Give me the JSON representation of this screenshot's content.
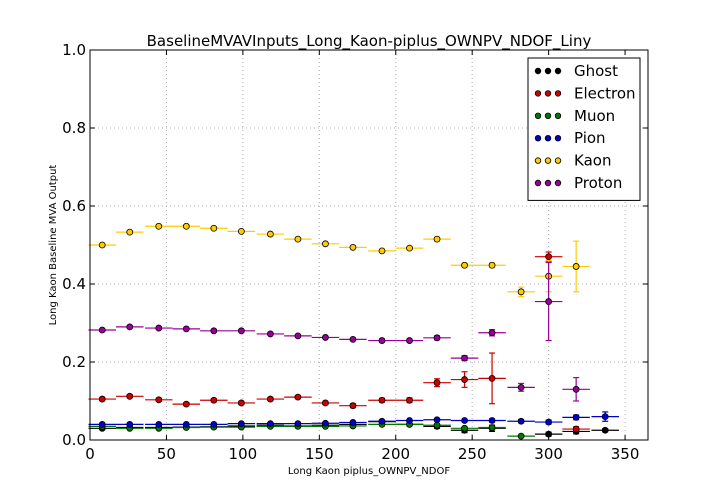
{
  "chart_data": {
    "type": "scatter",
    "title": "BaselineMVAVInputs_Long_Kaon-piplus_OWNPV_NDOF_Liny",
    "xlabel": "Long Kaon piplus_OWNPV_NDOF",
    "ylabel": "Long Kaon Baseline MVA Output",
    "xlim": [
      0,
      365
    ],
    "ylim": [
      0,
      1.0
    ],
    "x_ticks": [
      "0",
      "50",
      "100",
      "150",
      "200",
      "250",
      "300",
      "350"
    ],
    "y_ticks": [
      "0.0",
      "0.2",
      "0.4",
      "0.6",
      "0.8",
      "1.0"
    ],
    "grid": true,
    "legend_position": "top-right",
    "bin_half_width": 9,
    "x": [
      8,
      26,
      45,
      63,
      81,
      99,
      118,
      136,
      154,
      172,
      191,
      209,
      227,
      245,
      263,
      282,
      300,
      318,
      337
    ],
    "series": [
      {
        "name": "Ghost",
        "color": "#000000",
        "values": [
          0.03,
          0.032,
          0.032,
          0.033,
          0.034,
          0.036,
          0.038,
          0.036,
          0.038,
          0.04,
          0.047,
          0.04,
          0.035,
          0.025,
          0.03,
          null,
          0.015,
          0.022,
          0.025
        ],
        "yerr": [
          0.003,
          0.003,
          0.003,
          0.003,
          0.003,
          0.003,
          0.003,
          0.003,
          0.003,
          0.003,
          0.004,
          0.004,
          0.005,
          0.006,
          0.008,
          0.0,
          0.005,
          0.006,
          0.004
        ]
      },
      {
        "name": "Electron",
        "color": "#cc0000",
        "values": [
          0.105,
          0.112,
          0.103,
          0.092,
          0.102,
          0.095,
          0.105,
          0.11,
          0.095,
          0.088,
          0.102,
          0.102,
          0.147,
          0.155,
          0.158,
          null,
          0.47,
          0.028,
          null
        ],
        "yerr": [
          0.004,
          0.004,
          0.004,
          0.004,
          0.004,
          0.004,
          0.004,
          0.004,
          0.004,
          0.005,
          0.005,
          0.006,
          0.01,
          0.02,
          0.065,
          0.0,
          0.012,
          0.006,
          0.0
        ]
      },
      {
        "name": "Muon",
        "color": "#007700",
        "values": [
          0.035,
          0.03,
          0.03,
          0.032,
          0.033,
          0.033,
          0.035,
          0.035,
          0.035,
          0.036,
          0.04,
          0.04,
          0.038,
          0.03,
          0.032,
          0.01,
          null,
          null,
          null
        ],
        "yerr": [
          0.002,
          0.002,
          0.002,
          0.002,
          0.002,
          0.002,
          0.002,
          0.002,
          0.002,
          0.002,
          0.003,
          0.003,
          0.003,
          0.004,
          0.004,
          0.003,
          0.0,
          0.0,
          0.0
        ]
      },
      {
        "name": "Pion",
        "color": "#0000cc",
        "values": [
          0.04,
          0.04,
          0.04,
          0.04,
          0.04,
          0.042,
          0.042,
          0.042,
          0.043,
          0.045,
          0.048,
          0.05,
          0.052,
          0.05,
          0.05,
          0.048,
          0.046,
          0.058,
          0.06
        ],
        "yerr": [
          0.001,
          0.001,
          0.001,
          0.001,
          0.001,
          0.001,
          0.001,
          0.001,
          0.001,
          0.001,
          0.002,
          0.002,
          0.002,
          0.003,
          0.004,
          0.004,
          0.005,
          0.006,
          0.012
        ]
      },
      {
        "name": "Kaon",
        "color": "#ffcc00",
        "values": [
          0.5,
          0.533,
          0.548,
          0.548,
          0.543,
          0.535,
          0.528,
          0.515,
          0.503,
          0.494,
          0.485,
          0.492,
          0.515,
          0.448,
          0.448,
          0.38,
          0.42,
          0.445,
          null
        ],
        "yerr": [
          0.003,
          0.003,
          0.003,
          0.003,
          0.003,
          0.003,
          0.003,
          0.003,
          0.003,
          0.003,
          0.004,
          0.004,
          0.005,
          0.006,
          0.006,
          0.012,
          0.04,
          0.065,
          0.0
        ]
      },
      {
        "name": "Proton",
        "color": "#990099",
        "values": [
          0.282,
          0.29,
          0.287,
          0.285,
          0.28,
          0.28,
          0.272,
          0.267,
          0.263,
          0.258,
          0.255,
          0.255,
          0.262,
          0.21,
          0.275,
          0.135,
          0.355,
          0.13,
          null
        ],
        "yerr": [
          0.003,
          0.003,
          0.003,
          0.003,
          0.003,
          0.003,
          0.003,
          0.003,
          0.003,
          0.003,
          0.004,
          0.004,
          0.005,
          0.006,
          0.008,
          0.01,
          0.1,
          0.03,
          0.0
        ]
      }
    ]
  }
}
